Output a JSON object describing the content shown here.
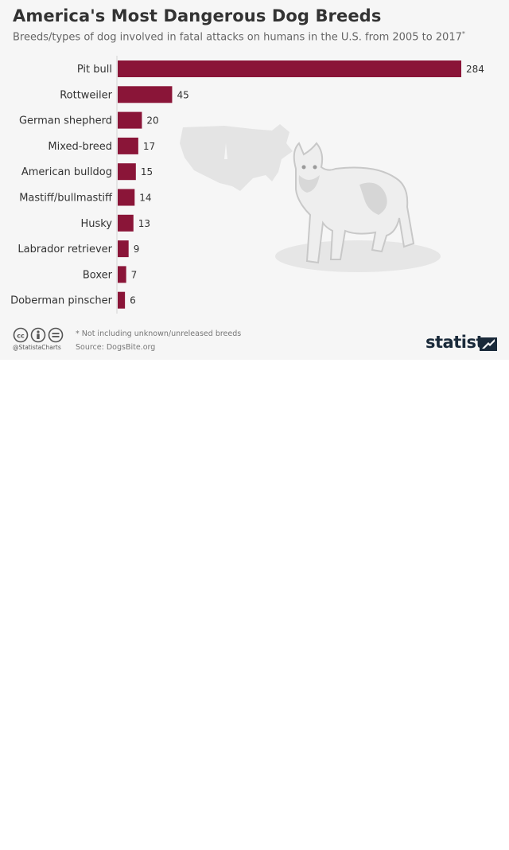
{
  "header": {
    "title": "America's Most Dangerous Dog Breeds",
    "subtitle": "Breeds/types of dog involved in fatal attacks on humans in the U.S. from 2005 to 2017",
    "subtitle_mark": "*"
  },
  "chart_data": {
    "type": "bar",
    "orientation": "horizontal",
    "title": "America's Most Dangerous Dog Breeds",
    "categories": [
      "Pit bull",
      "Rottweiler",
      "German shepherd",
      "Mixed-breed",
      "American bulldog",
      "Mastiff/bullmastiff",
      "Husky",
      "Labrador retriever",
      "Boxer",
      "Doberman pinscher"
    ],
    "values": [
      284,
      45,
      20,
      17,
      15,
      14,
      13,
      9,
      7,
      6
    ],
    "xlim": [
      0,
      284
    ],
    "grid": false,
    "legend": "none",
    "bar_color": "#8a1538"
  },
  "footer": {
    "note": "* Not including unknown/unreleased breeds",
    "source": "Source: DogsBite.org",
    "handle": "@StatistaCharts",
    "brand": "statista"
  },
  "icons": [
    "cc-icon",
    "by-icon",
    "nd-icon",
    "us-map-icon",
    "dog-illustration-icon",
    "statista-logo-icon"
  ],
  "colors": {
    "bar": "#8a1538",
    "card_bg": "#f6f6f6",
    "title": "#333333",
    "brand": "#1a2a3a"
  }
}
